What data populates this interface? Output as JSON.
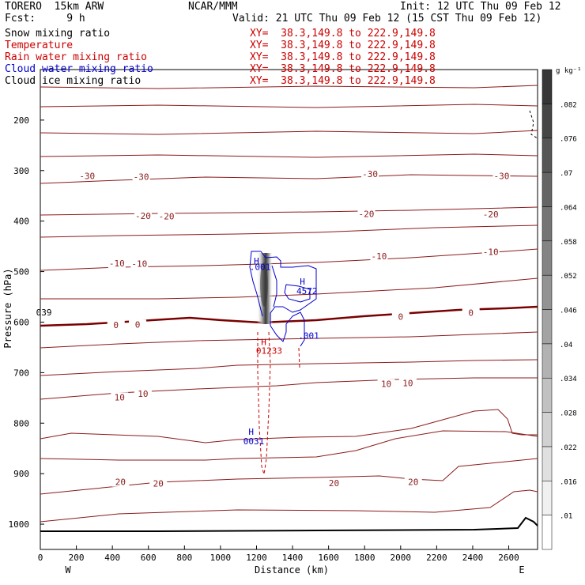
{
  "header": {
    "model": "TORERO  15km ARW",
    "org": "NCAR/MMM",
    "init": "Init: 12 UTC Thu 09 Feb 12",
    "fcst": "Fcst:     9 h",
    "valid": "Valid: 21 UTC Thu 09 Feb 12 (15 CST Thu 09 Feb 12)"
  },
  "fields": [
    {
      "label": "Snow mixing ratio",
      "xy": "XY=  38.3,149.8 to 222.9,149.8",
      "color": "#000000"
    },
    {
      "label": "Temperature",
      "xy": "XY=  38.3,149.8 to 222.9,149.8",
      "color": "#cc0000"
    },
    {
      "label": "Rain water mixing ratio",
      "xy": "XY=  38.3,149.8 to 222.9,149.8",
      "color": "#cc0000"
    },
    {
      "label": "Cloud water mixing ratio",
      "xy": "XY=  38.3,149.8 to 222.9,149.8",
      "color": "#0000cc"
    },
    {
      "label": "Cloud ice mixing ratio",
      "xy": "XY=  38.3,149.8 to 222.9,149.8",
      "color": "#000000"
    }
  ],
  "colors": {
    "temperature": "#8b1a1a",
    "temperature_zero": "#7a0000",
    "rain": "#cc0000",
    "cloud": "#0000cc",
    "ground": "#000000"
  },
  "chart_data": {
    "type": "contour-cross-section",
    "xlabel": "Distance (km)",
    "ylabel": "Pressure (hPa)",
    "xlim": [
      0,
      2760
    ],
    "ylim": [
      1050,
      100
    ],
    "x_ticks": [
      0,
      200,
      400,
      600,
      800,
      1000,
      1200,
      1400,
      1600,
      1800,
      2000,
      2200,
      2400,
      2600
    ],
    "y_ticks": [
      200,
      300,
      400,
      500,
      600,
      700,
      800,
      900,
      1000
    ],
    "x_end_labels": {
      "left": "W",
      "right": "E"
    },
    "colorbar": {
      "unit": "g kg⁻¹",
      "ticks": [
        ".01",
        ".016",
        ".022",
        ".028",
        ".034",
        ".04",
        ".046",
        ".052",
        ".058",
        ".064",
        ".07",
        ".076",
        ".082"
      ]
    },
    "temperature_contour_labels": [
      {
        "text": "-30",
        "x": 260,
        "p": 312
      },
      {
        "text": "-30",
        "x": 560,
        "p": 314
      },
      {
        "text": "-30",
        "x": 1830,
        "p": 308
      },
      {
        "text": "-30",
        "x": 2560,
        "p": 312
      },
      {
        "text": "-20",
        "x": 570,
        "p": 391
      },
      {
        "text": "-20",
        "x": 700,
        "p": 392
      },
      {
        "text": "-20",
        "x": 1810,
        "p": 387
      },
      {
        "text": "-20",
        "x": 2500,
        "p": 388
      },
      {
        "text": "-10",
        "x": 425,
        "p": 485
      },
      {
        "text": "-10",
        "x": 550,
        "p": 486
      },
      {
        "text": "-10",
        "x": 1880,
        "p": 471
      },
      {
        "text": "-10",
        "x": 2500,
        "p": 462
      },
      {
        "text": "0",
        "x": 420,
        "p": 607
      },
      {
        "text": "0",
        "x": 540,
        "p": 606
      },
      {
        "text": "0",
        "x": 2000,
        "p": 591
      },
      {
        "text": "0",
        "x": 2390,
        "p": 583
      },
      {
        "text": "10",
        "x": 440,
        "p": 750
      },
      {
        "text": "10",
        "x": 570,
        "p": 743
      },
      {
        "text": "10",
        "x": 1920,
        "p": 724
      },
      {
        "text": "10",
        "x": 2040,
        "p": 722
      },
      {
        "text": "20",
        "x": 445,
        "p": 918
      },
      {
        "text": "20",
        "x": 655,
        "p": 921
      },
      {
        "text": "20",
        "x": 1630,
        "p": 920
      },
      {
        "text": "20",
        "x": 2070,
        "p": 918
      }
    ],
    "annotations": [
      {
        "text": "H",
        "x": 1200,
        "p": 480,
        "color": "cloud"
      },
      {
        "text": ".001",
        "x": 1220,
        "p": 492,
        "color": "cloud"
      },
      {
        "text": "H",
        "x": 1455,
        "p": 521,
        "color": "cloud"
      },
      {
        "text": "4572",
        "x": 1480,
        "p": 540,
        "color": "cloud"
      },
      {
        "text": ".001",
        "x": 1490,
        "p": 628,
        "color": "cloud"
      },
      {
        "text": "H",
        "x": 1240,
        "p": 641,
        "color": "rain"
      },
      {
        "text": "01233",
        "x": 1270,
        "p": 658,
        "color": "rain"
      },
      {
        "text": "H",
        "x": 1170,
        "p": 818,
        "color": "cloud"
      },
      {
        "text": "0031",
        "x": 1185,
        "p": 837,
        "color": "cloud"
      },
      {
        "text": "039",
        "x": 20,
        "p": 582,
        "color": "ground"
      }
    ]
  }
}
